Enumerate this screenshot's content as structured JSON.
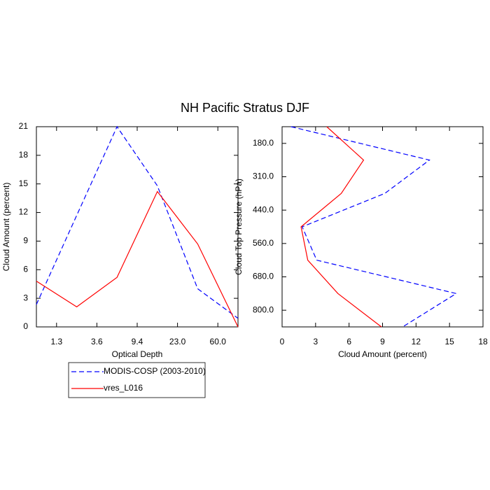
{
  "title": "NH Pacific Stratus DJF",
  "chart_data": [
    {
      "type": "line",
      "xlabel": "Optical Depth",
      "ylabel": "Cloud Amount (percent)",
      "categories": [
        null,
        null,
        null,
        null,
        null,
        null
      ],
      "xlim": [
        0,
        5
      ],
      "xticks": [
        {
          "value": 0.5,
          "label": "1.3"
        },
        {
          "value": 1.5,
          "label": "3.6"
        },
        {
          "value": 2.5,
          "label": "9.4"
        },
        {
          "value": 3.5,
          "label": "23.0"
        },
        {
          "value": 4.5,
          "label": "60.0"
        }
      ],
      "ylim": [
        0,
        21
      ],
      "yticks": [
        0,
        3,
        6,
        9,
        12,
        15,
        18,
        21
      ],
      "series": [
        {
          "name": "MODIS-COSP (2003-2010)",
          "color": "#0000ff",
          "linestyle": "dashed",
          "values": [
            2.35,
            11.7,
            21.0,
            14.8,
            4.0,
            0.9
          ]
        },
        {
          "name": "vres_L016",
          "color": "#ff0000",
          "linestyle": "solid",
          "values": [
            4.8,
            2.1,
            5.2,
            14.2,
            8.7,
            0
          ]
        }
      ]
    },
    {
      "type": "line",
      "orientation": "horizontal",
      "xlabel": "Cloud Amount (percent)",
      "ylabel": "Cloud Top Pressure (hPa)",
      "categories": [
        null,
        null,
        null,
        null,
        null,
        null,
        null
      ],
      "xlim": [
        0,
        18
      ],
      "xticks": [
        0,
        3,
        6,
        9,
        12,
        15,
        18
      ],
      "ylim": [
        6,
        0
      ],
      "yticks": [
        {
          "value": 0.5,
          "label": "180.0"
        },
        {
          "value": 1.5,
          "label": "310.0"
        },
        {
          "value": 2.5,
          "label": "440.0"
        },
        {
          "value": 3.5,
          "label": "560.0"
        },
        {
          "value": 4.5,
          "label": "680.0"
        },
        {
          "value": 5.5,
          "label": "800.0"
        }
      ],
      "series": [
        {
          "name": "MODIS-COSP (2003-2010)",
          "color": "#0000ff",
          "linestyle": "dashed",
          "values": [
            0.8,
            13.2,
            9.2,
            1.8,
            3.1,
            15.6,
            10.8
          ]
        },
        {
          "name": "vres_L016",
          "color": "#ff0000",
          "linestyle": "solid",
          "values": [
            4.0,
            7.3,
            5.3,
            1.7,
            2.3,
            5.0,
            8.9
          ]
        }
      ]
    }
  ]
}
